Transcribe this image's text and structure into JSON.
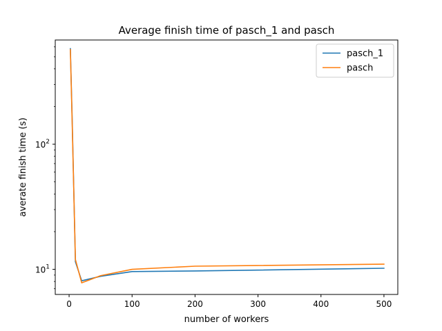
{
  "chart_data": {
    "type": "line",
    "title": "Average finish time of pasch_1 and pasch",
    "xlabel": "number of workers",
    "ylabel": "averate finish time (s)",
    "xlim": [
      -22,
      522
    ],
    "ylim": [
      6.3,
      680
    ],
    "yscale": "log",
    "xticks": [
      0,
      100,
      200,
      300,
      400,
      500
    ],
    "yticks": [
      {
        "value": 10,
        "base": "10",
        "exp": "1"
      },
      {
        "value": 100,
        "base": "10",
        "exp": "2"
      }
    ],
    "legend_position": "top-right",
    "series": [
      {
        "name": "pasch_1",
        "color": "#1f77b4",
        "x": [
          2,
          5,
          10,
          20,
          50,
          100,
          200,
          500
        ],
        "y": [
          580,
          150,
          11.5,
          8.1,
          8.8,
          9.6,
          9.7,
          10.2
        ]
      },
      {
        "name": "pasch",
        "color": "#ff7f0e",
        "x": [
          2,
          5,
          10,
          20,
          50,
          100,
          200,
          500
        ],
        "y": [
          570,
          140,
          12.0,
          7.8,
          8.9,
          10.0,
          10.6,
          11.0
        ]
      }
    ]
  }
}
